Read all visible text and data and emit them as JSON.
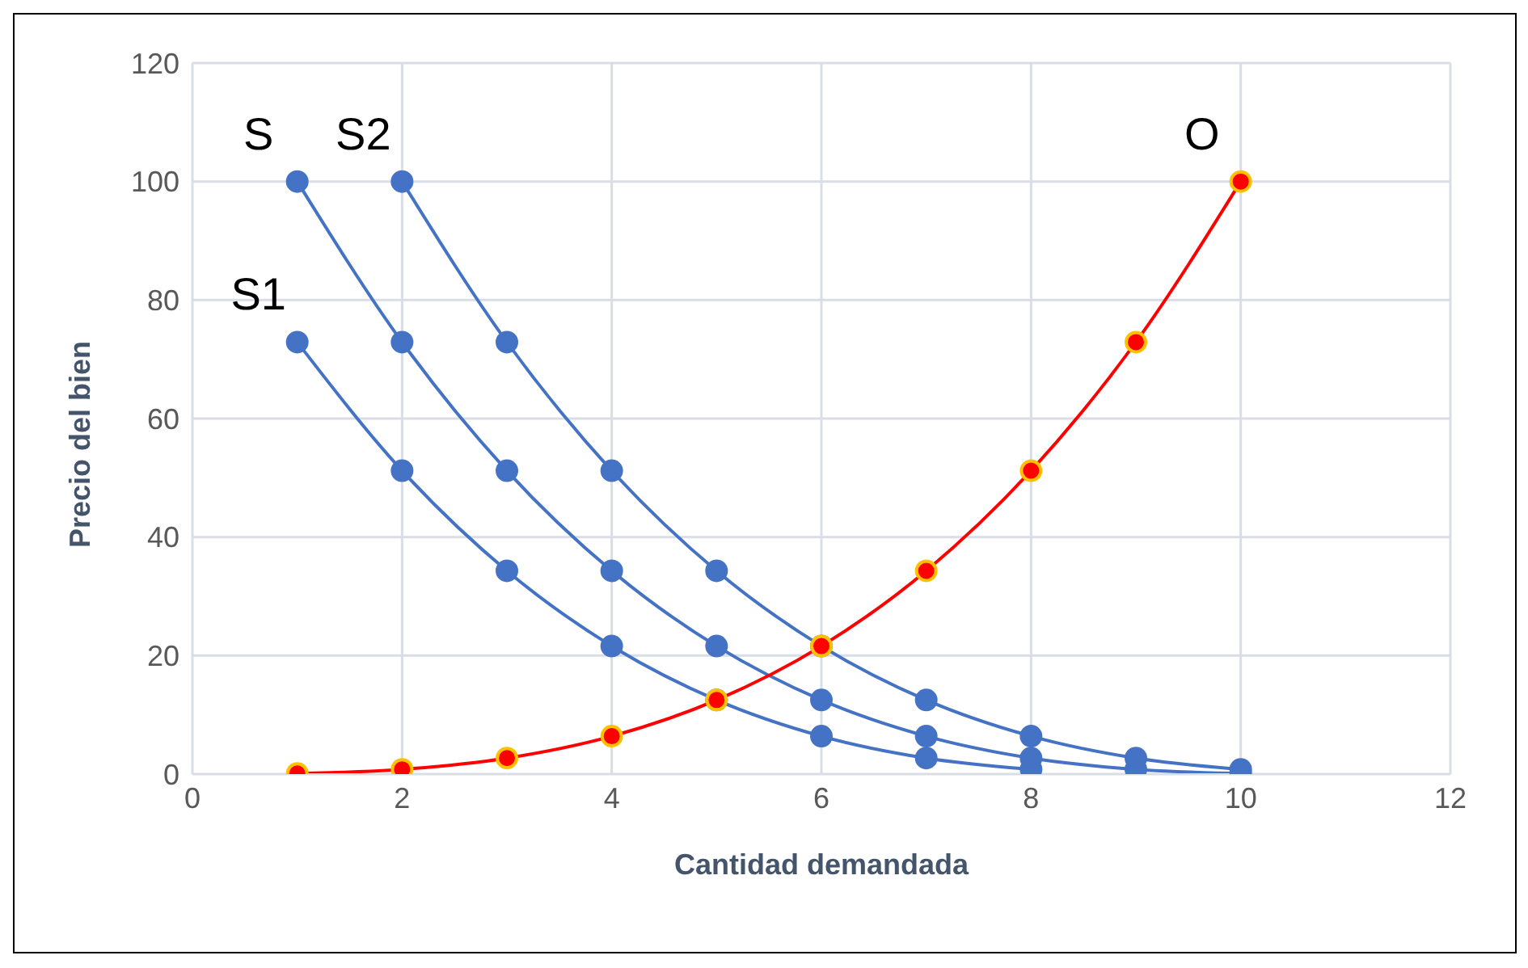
{
  "chart_data": {
    "type": "line",
    "xlabel": "Cantidad demandada",
    "ylabel": "Precio del bien",
    "xlim": [
      0,
      12
    ],
    "xticks": [
      0,
      2,
      4,
      6,
      8,
      10,
      12
    ],
    "ylim": [
      0,
      120
    ],
    "yticks": [
      0,
      20,
      40,
      60,
      80,
      100,
      120
    ],
    "grid": true,
    "marker": "circle",
    "line_style": "solid",
    "series": [
      {
        "name": "S",
        "color": "#4472c4",
        "x": [
          1,
          2,
          3,
          4,
          5,
          6,
          7,
          8,
          9,
          10
        ],
        "values": [
          100,
          72.9,
          51.2,
          34.3,
          21.6,
          12.5,
          6.4,
          2.7,
          0.8,
          0.1
        ]
      },
      {
        "name": "S1",
        "color": "#4472c4",
        "x": [
          1,
          2,
          3,
          4,
          5,
          6,
          7,
          8
        ],
        "values": [
          72.9,
          51.2,
          34.3,
          21.6,
          12.5,
          6.4,
          2.7,
          0.8
        ]
      },
      {
        "name": "S2",
        "color": "#4472c4",
        "x": [
          2,
          3,
          4,
          5,
          6,
          7,
          8,
          9,
          10
        ],
        "values": [
          100,
          72.9,
          51.2,
          34.3,
          21.6,
          12.5,
          6.4,
          2.7,
          0.8
        ]
      },
      {
        "name": "O",
        "color": "#ff0000",
        "x": [
          1,
          2,
          3,
          4,
          5,
          6,
          7,
          8,
          9,
          10
        ],
        "values": [
          0.1,
          0.8,
          2.7,
          6.4,
          12.5,
          21.6,
          34.3,
          51.2,
          72.9,
          100
        ]
      }
    ]
  }
}
